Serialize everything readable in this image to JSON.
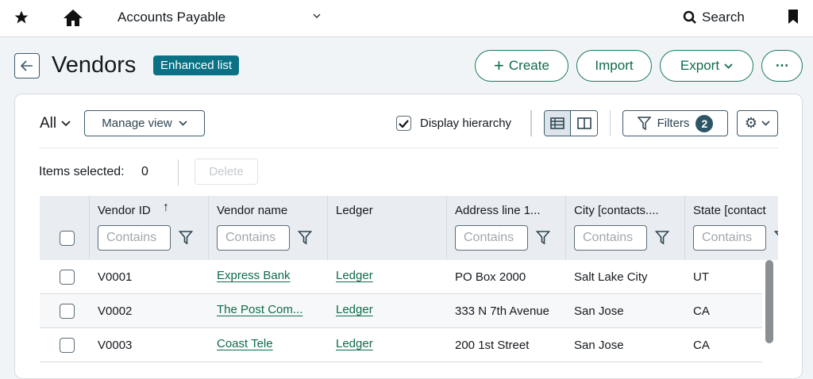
{
  "topbar": {
    "app_title": "Accounts Payable",
    "search_label": "Search"
  },
  "header": {
    "title": "Vendors",
    "badge": "Enhanced list",
    "create_label": "Create",
    "import_label": "Import",
    "export_label": "Export"
  },
  "toolbar": {
    "view_label": "All",
    "manage_view_label": "Manage view",
    "display_hierarchy_label": "Display hierarchy",
    "display_hierarchy_checked": true,
    "filters_label": "Filters",
    "filters_count": "2",
    "items_selected_label": "Items selected:",
    "items_selected_count": "0",
    "delete_label": "Delete"
  },
  "table": {
    "filter_placeholder": "Contains",
    "columns": [
      "Vendor ID",
      "Vendor name",
      "Ledger",
      "Address line 1...",
      "City [contacts....",
      "State [contact"
    ],
    "rows": [
      {
        "id": "V0001",
        "name": "Express Bank",
        "ledger": "Ledger",
        "address": "PO Box 2000",
        "city": "Salt Lake City",
        "state": "UT"
      },
      {
        "id": "V0002",
        "name": "The Post Com...",
        "ledger": "Ledger",
        "address": "333 N 7th Avenue",
        "city": "San Jose",
        "state": "CA"
      },
      {
        "id": "V0003",
        "name": "Coast Tele",
        "ledger": "Ledger",
        "address": "200 1st Street",
        "city": "San Jose",
        "state": "CA"
      }
    ]
  },
  "colors": {
    "accent": "#0f6b4a",
    "badge": "#0b7285",
    "filter_badge": "#2d5566"
  }
}
